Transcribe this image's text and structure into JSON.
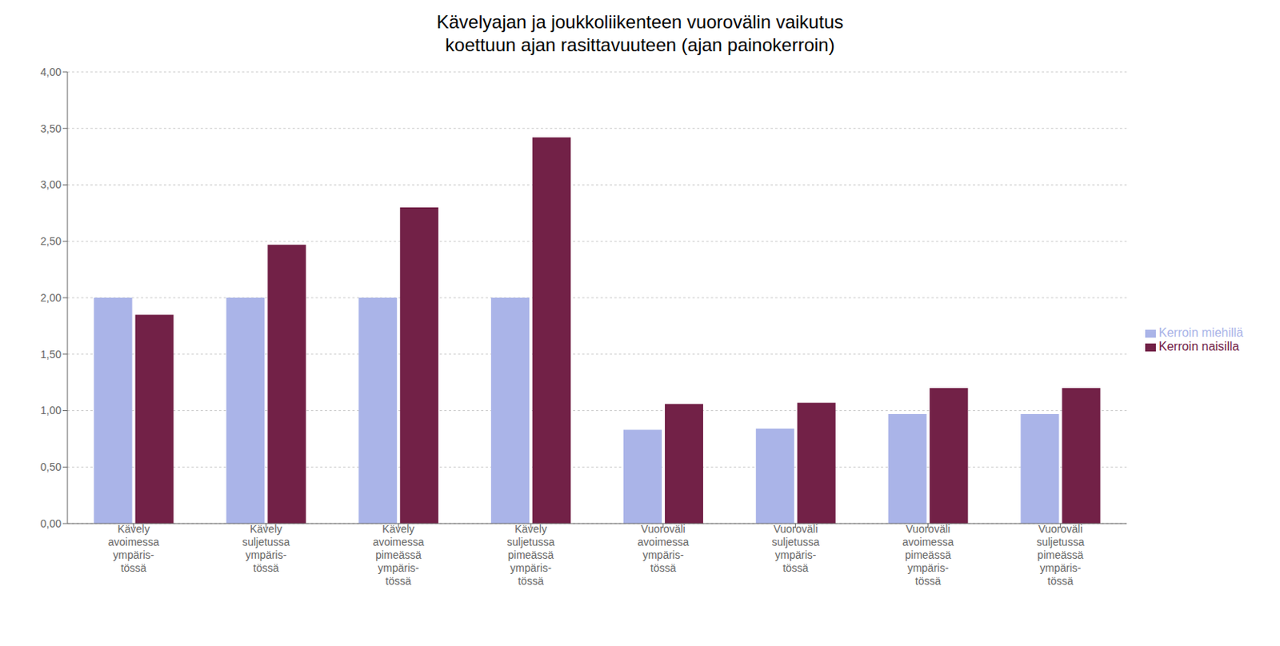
{
  "chart_data": {
    "type": "bar",
    "title": "Kävelyajan ja joukkoliikenteen vuorovälin vaikutus\nkoettuun ajan rasittavuuteen (ajan painokerroin)",
    "categories": [
      "Kävely\navoimessa\nympäris-\ntössä",
      "Kävely\nsuljetussa\nympäris-\ntössä",
      "Kävely\navoimessa\npimeässä\nympäris-\ntössä",
      "Kävely\nsuljetussa\npimeässä\nympäris-\ntössä",
      "Vuoroväli\navoimessa\nympäris-\ntössä",
      "Vuoroväli\nsuljetussa\nympäris-\ntössä",
      "Vuoroväli\navoimessa\npimeässä\nympäris-\ntössä",
      "Vuoroväli\nsuljetussa\npimeässä\nympäris-\ntössä"
    ],
    "series": [
      {
        "name": "Kerroin miehillä",
        "color": "#aab4e8",
        "values": [
          2.0,
          2.0,
          2.0,
          2.0,
          0.83,
          0.84,
          0.97,
          0.97
        ]
      },
      {
        "name": "Kerroin naisilla",
        "color": "#722147",
        "values": [
          1.85,
          2.47,
          2.8,
          3.42,
          1.06,
          1.07,
          1.2,
          1.2
        ]
      }
    ],
    "ylim": [
      0.0,
      4.0
    ],
    "yticks": [
      {
        "value": 0.0,
        "label": "0,00"
      },
      {
        "value": 0.5,
        "label": "0,50"
      },
      {
        "value": 1.0,
        "label": "1,00"
      },
      {
        "value": 1.5,
        "label": "1,50"
      },
      {
        "value": 2.0,
        "label": "2,00"
      },
      {
        "value": 2.5,
        "label": "2,50"
      },
      {
        "value": 3.0,
        "label": "3,00"
      },
      {
        "value": 3.5,
        "label": "3,50"
      },
      {
        "value": 4.0,
        "label": "4,00"
      }
    ],
    "grid": true,
    "legend": "right"
  }
}
